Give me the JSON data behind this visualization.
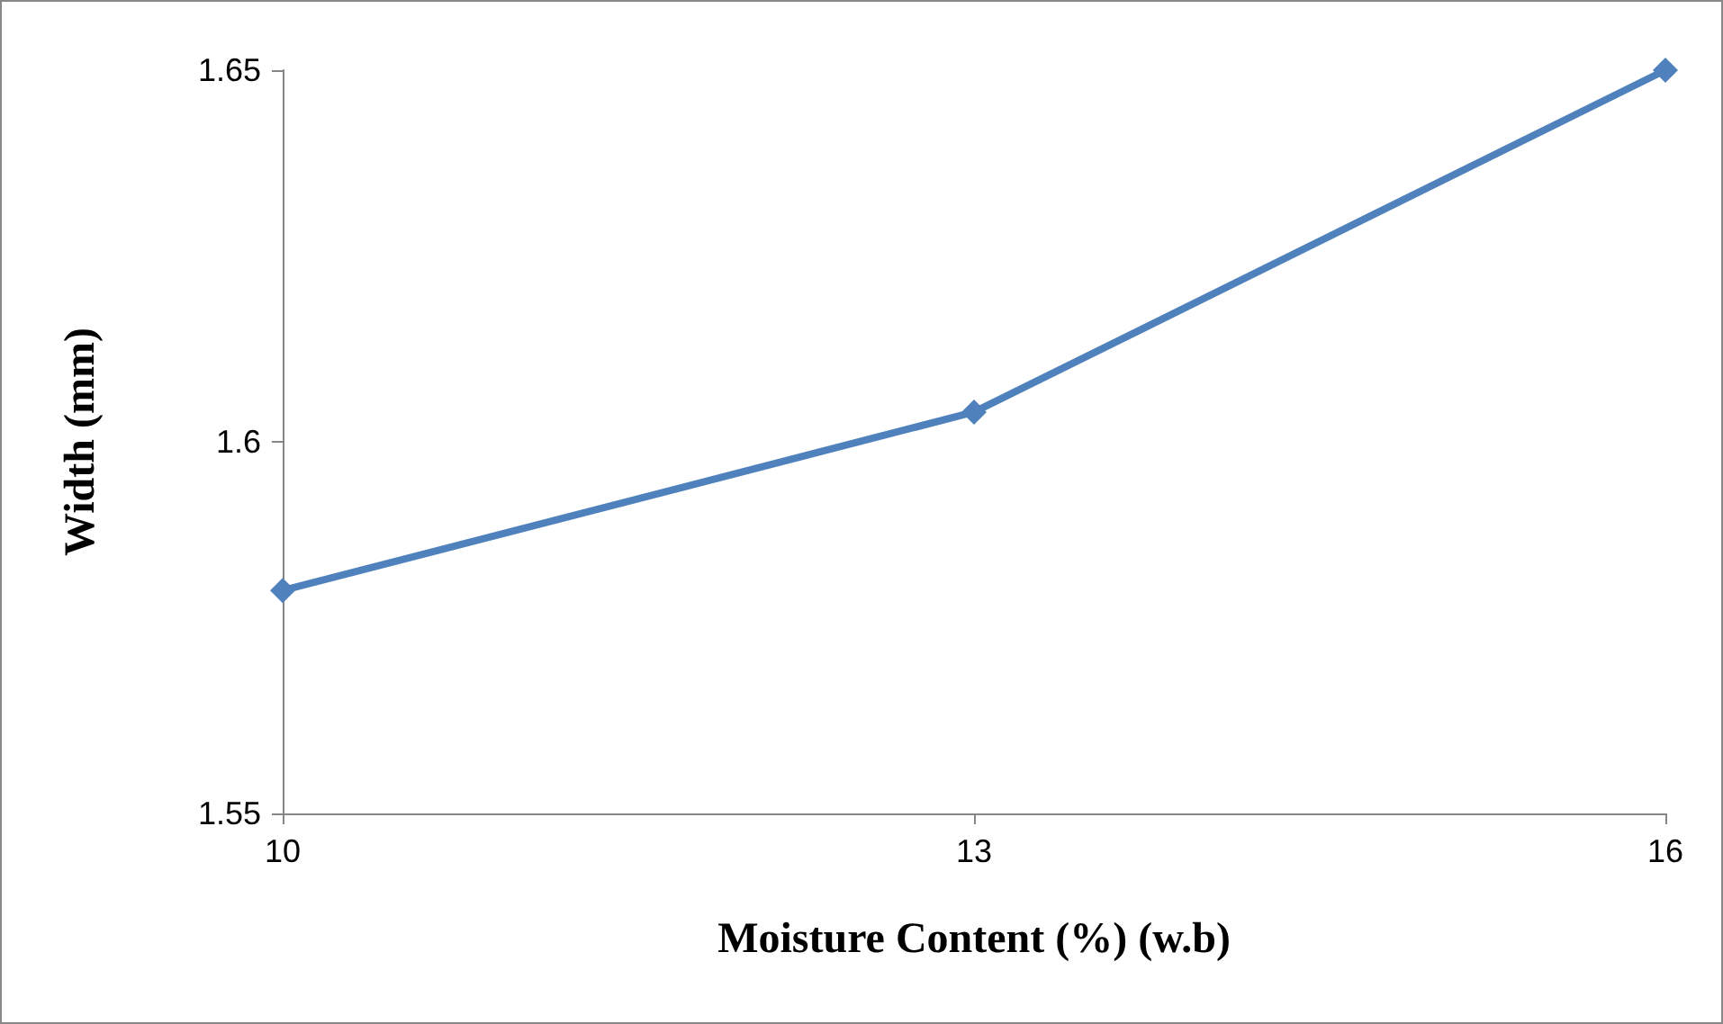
{
  "chart_data": {
    "type": "line",
    "xlabel": "Moisture Content (%) (w.b)",
    "ylabel": "Width (mm)",
    "x": [
      10,
      13,
      16
    ],
    "series": [
      {
        "color": "#4f81bd",
        "values": [
          1.58,
          1.604,
          1.65
        ]
      }
    ],
    "xlim": [
      10,
      16
    ],
    "xticks": [
      10,
      13,
      16
    ],
    "ylim": [
      1.55,
      1.65
    ],
    "yticks": [
      1.55,
      1.6,
      1.65
    ],
    "grid": false,
    "marker": "diamond",
    "line_style": "solid"
  }
}
